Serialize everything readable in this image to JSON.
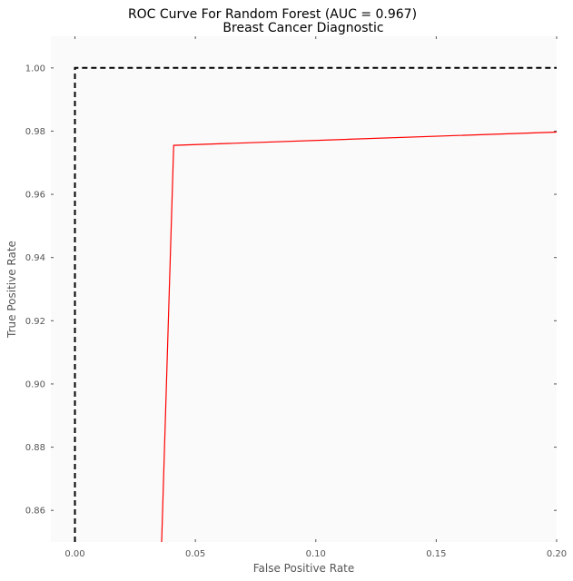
{
  "chart_data": {
    "type": "line",
    "title": "ROC Curve For Random Forest (AUC =  0.967)",
    "subtitle": "Breast Cancer Diagnostic",
    "xlabel": "False Positive Rate",
    "ylabel": "True Positive Rate",
    "xlim": [
      -0.01,
      0.2
    ],
    "ylim": [
      0.85,
      1.01
    ],
    "xticks": [
      0.0,
      0.05,
      0.1,
      0.15,
      0.2
    ],
    "xtick_labels": [
      "0.00",
      "0.05",
      "0.10",
      "0.15",
      "0.20"
    ],
    "yticks": [
      0.86,
      0.88,
      0.9,
      0.92,
      0.94,
      0.96,
      0.98,
      1.0
    ],
    "ytick_labels": [
      "0.86",
      "0.88",
      "0.90",
      "0.92",
      "0.94",
      "0.96",
      "0.98",
      "1.00"
    ],
    "grid": false,
    "series": [
      {
        "values_x": [
          0.036,
          0.041,
          0.2
        ],
        "values_y": [
          0.85,
          0.9755,
          0.9797
        ],
        "color": "#ff0000",
        "style": "solid"
      },
      {
        "values_x": [
          0.0,
          0.0,
          0.2
        ],
        "values_y": [
          0.85,
          1.0,
          1.0
        ],
        "color": "#000000",
        "style": "dashed"
      }
    ],
    "colors": {
      "plot_background": "#fafafa",
      "tick_color": "#555555"
    }
  }
}
